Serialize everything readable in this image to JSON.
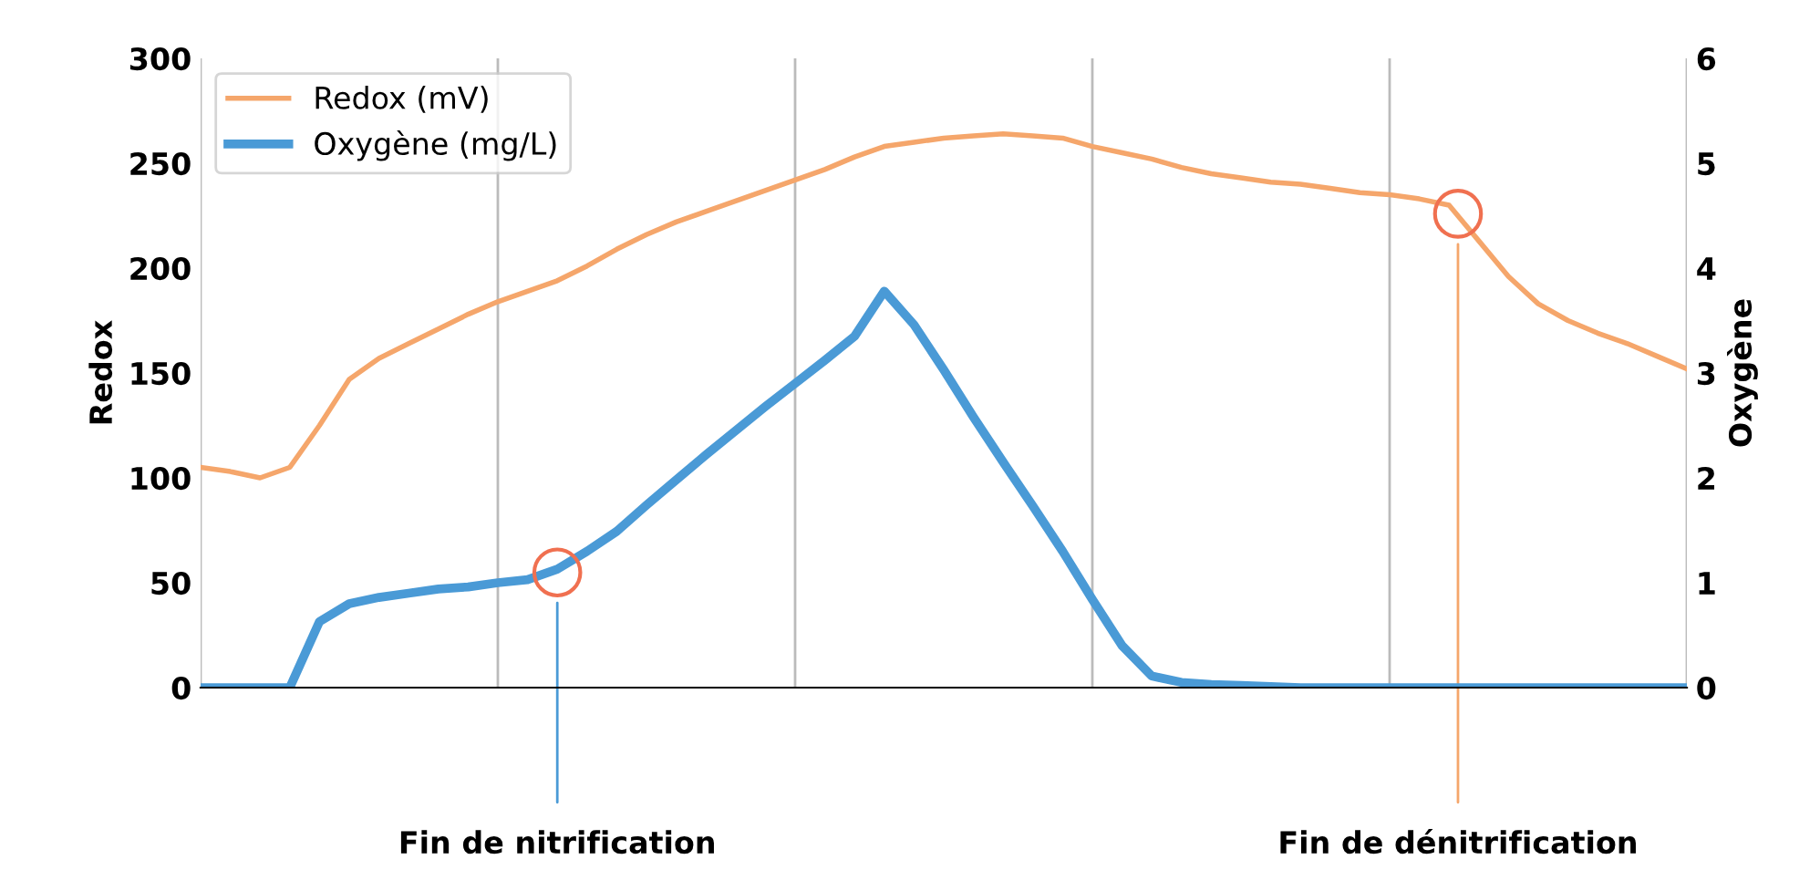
{
  "chart_data": {
    "type": "line",
    "ylabel": "Redox",
    "y2label": "Oxygène",
    "categories": [
      null,
      null,
      null,
      null,
      null,
      null,
      null,
      null,
      null,
      null,
      null,
      null,
      null,
      null,
      null,
      null,
      null,
      null,
      null,
      null,
      null,
      null,
      null,
      null,
      null,
      null,
      null,
      null,
      null,
      null,
      null,
      null,
      null,
      null,
      null,
      null,
      null,
      null,
      null,
      null,
      null,
      null,
      null,
      null,
      null,
      null,
      null,
      null,
      null,
      null,
      null
    ],
    "ylim": [
      0,
      300
    ],
    "yticks": [
      0,
      50,
      100,
      150,
      200,
      250,
      300
    ],
    "y2lim": [
      0,
      6
    ],
    "y2ticks": [
      0,
      1,
      2,
      3,
      4,
      5,
      6
    ],
    "tick_labels": "y",
    "grid": "x",
    "legend": "top left",
    "series": [
      {
        "name": "Redox (mV)",
        "color": "#f5a66b",
        "values": [
          105,
          103,
          100,
          105,
          125,
          147,
          157,
          164,
          171,
          178,
          184,
          189,
          194,
          201,
          209,
          216,
          222,
          227,
          232,
          237,
          242,
          247,
          253,
          258,
          260,
          262,
          263,
          264,
          263,
          262,
          258,
          255,
          252,
          248,
          245,
          243,
          241,
          240,
          238,
          236,
          235,
          233,
          230,
          213,
          196,
          183,
          175,
          169,
          164,
          158,
          152
        ]
      },
      {
        "name": "Oxygène (mg/L)",
        "color": "#4a9ad6",
        "axis": "y2",
        "values": [
          0,
          0,
          0,
          0,
          0.63,
          0.8,
          0.86,
          0.9,
          0.94,
          0.96,
          1.0,
          1.03,
          1.13,
          1.3,
          1.49,
          1.74,
          1.98,
          2.22,
          2.45,
          2.68,
          2.9,
          3.12,
          3.35,
          3.78,
          3.46,
          3.03,
          2.58,
          2.15,
          1.73,
          1.3,
          0.84,
          0.4,
          0.11,
          0.05,
          0.03,
          0.02,
          0.01,
          0,
          0,
          0,
          0,
          0,
          0,
          0,
          0,
          0,
          0,
          0,
          0,
          0,
          0
        ]
      }
    ],
    "annotations": [
      "Fin de nitrification",
      "Fin de dénitrification"
    ]
  }
}
